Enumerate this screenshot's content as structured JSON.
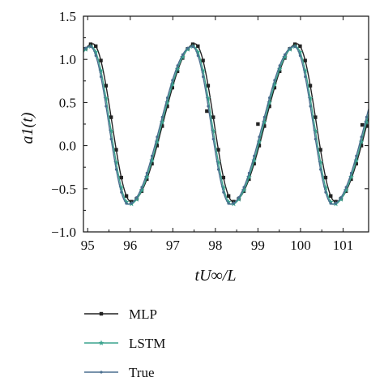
{
  "chart_data": {
    "type": "line",
    "title": "",
    "xlabel": "tU∞/L",
    "ylabel": "a1(t)",
    "xlim": [
      94.9,
      101.6
    ],
    "ylim": [
      -1.0,
      1.5
    ],
    "xticks": [
      "95",
      "96",
      "97",
      "98",
      "99",
      "100",
      "101"
    ],
    "yticks": [
      "−1.0",
      "−0.5",
      "0.0",
      "0.5",
      "1.0",
      "1.5"
    ],
    "grid": false,
    "legend_position": "below",
    "series": [
      {
        "name": "MLP",
        "color": "#222222",
        "marker": "square",
        "phase_shift": 0.07,
        "y_offset": 0.03,
        "extra_points": [
          [
            97.8,
            0.4
          ],
          [
            99.0,
            0.25
          ],
          [
            101.45,
            0.24
          ]
        ]
      },
      {
        "name": "LSTM",
        "color": "#3aa38e",
        "marker": "star",
        "phase_shift": 0.03,
        "y_offset": 0.0,
        "extra_points": []
      },
      {
        "name": "True",
        "color": "#4a6f8f",
        "marker": "dot",
        "phase_shift": 0.0,
        "y_offset": 0.0,
        "extra_points": []
      }
    ],
    "curve_model": {
      "period": 2.4,
      "peak_times": [
        95.05,
        97.45,
        99.85
      ],
      "min_times": [
        95.95,
        98.35,
        100.75
      ],
      "max": 1.15,
      "min": -0.68
    }
  }
}
